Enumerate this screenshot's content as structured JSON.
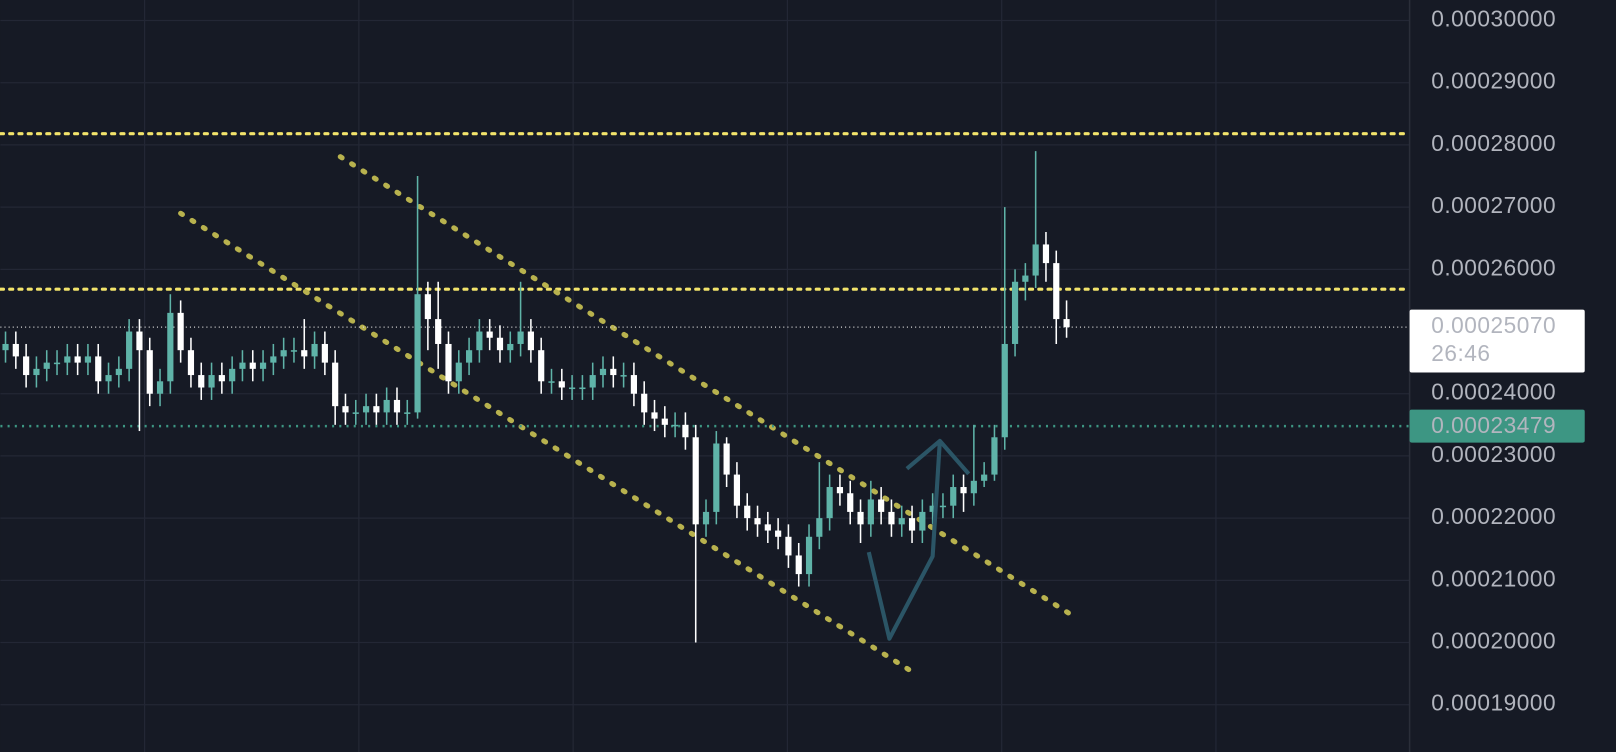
{
  "chart_data": {
    "type": "candlestick",
    "up_color": "#5fb3a8",
    "down_color": "#ffffff",
    "ylim": [
      0.0001824,
      0.0003033
    ],
    "xlim": [
      -0.5,
      136.3
    ],
    "grid": true,
    "yticks": [
      {
        "value": 0.0003,
        "label": "0.00030000"
      },
      {
        "value": 0.00029,
        "label": "0.00029000"
      },
      {
        "value": 0.00028,
        "label": "0.00028000"
      },
      {
        "value": 0.00027,
        "label": "0.00027000"
      },
      {
        "value": 0.00026,
        "label": "0.00026000"
      },
      {
        "value": 0.00024,
        "label": "0.00024000"
      },
      {
        "value": 0.00023,
        "label": "0.00023000"
      },
      {
        "value": 0.00022,
        "label": "0.00022000"
      },
      {
        "value": 0.00021,
        "label": "0.00021000"
      },
      {
        "value": 0.0002,
        "label": "0.00020000"
      },
      {
        "value": 0.00019,
        "label": "0.00019000"
      }
    ],
    "open": [
      0.000247,
      0.000248,
      0.000246,
      0.000243,
      0.000244,
      0.000245,
      0.000245,
      0.000246,
      0.000245,
      0.000246,
      0.000242,
      0.000243,
      0.000244,
      0.00025,
      0.000247,
      0.00024,
      0.000242,
      0.000253,
      0.000247,
      0.000243,
      0.000241,
      0.000243,
      0.000242,
      0.000244,
      0.000245,
      0.000244,
      0.000245,
      0.000246,
      0.000247,
      0.000247,
      0.000246,
      0.000248,
      0.000245,
      0.000238,
      0.000237,
      0.000237,
      0.000238,
      0.000237,
      0.000239,
      0.000237,
      0.000237,
      0.000256,
      0.000252,
      0.000248,
      0.000242,
      0.000245,
      0.000247,
      0.00025,
      0.000249,
      0.000247,
      0.000248,
      0.00025,
      0.000247,
      0.000242,
      0.000242,
      0.000241,
      0.000241,
      0.000241,
      0.000243,
      0.000244,
      0.000243,
      0.000243,
      0.00024,
      0.000237,
      0.000236,
      0.000235,
      0.000235,
      0.000233,
      0.000219,
      0.000221,
      0.000232,
      0.000227,
      0.000222,
      0.00022,
      0.000219,
      0.000218,
      0.000217,
      0.000214,
      0.000211,
      0.000217,
      0.00022,
      0.000225,
      0.000224,
      0.000221,
      0.000219,
      0.000223,
      0.000221,
      0.000219,
      0.00022,
      0.000218,
      0.000221,
      0.000222,
      0.000222,
      0.000225,
      0.000224,
      0.000226,
      0.000227,
      0.000233,
      0.000248,
      0.000258,
      0.000259,
      0.000264,
      0.000261,
      0.000252
    ],
    "high": [
      0.00025,
      0.00025,
      0.000248,
      0.000246,
      0.000247,
      0.000247,
      0.000248,
      0.000248,
      0.000248,
      0.000248,
      0.000245,
      0.000246,
      0.000252,
      0.000252,
      0.000249,
      0.000244,
      0.000256,
      0.000255,
      0.000249,
      0.000245,
      0.000245,
      0.000245,
      0.000246,
      0.000247,
      0.000247,
      0.000247,
      0.000248,
      0.000249,
      0.000249,
      0.000252,
      0.00025,
      0.00025,
      0.000247,
      0.00024,
      0.000239,
      0.00024,
      0.00024,
      0.000241,
      0.000241,
      0.000239,
      0.000275,
      0.000258,
      0.000258,
      0.00025,
      0.000247,
      0.000249,
      0.000252,
      0.000252,
      0.000251,
      0.00025,
      0.000258,
      0.000252,
      0.000249,
      0.000244,
      0.000244,
      0.000243,
      0.000243,
      0.000245,
      0.000246,
      0.000246,
      0.000245,
      0.000245,
      0.000242,
      0.000239,
      0.000238,
      0.000237,
      0.000237,
      0.000235,
      0.000223,
      0.000234,
      0.000233,
      0.000229,
      0.000224,
      0.000222,
      0.000221,
      0.00022,
      0.000219,
      0.000216,
      0.000219,
      0.000229,
      0.000227,
      0.000227,
      0.000226,
      0.000223,
      0.000226,
      0.000225,
      0.000223,
      0.000222,
      0.000222,
      0.000223,
      0.000224,
      0.000224,
      0.000227,
      0.000227,
      0.000235,
      0.000229,
      0.000235,
      0.00027,
      0.00026,
      0.000261,
      0.000279,
      0.000266,
      0.000263,
      0.000255
    ],
    "low": [
      0.000245,
      0.000244,
      0.000241,
      0.000241,
      0.000242,
      0.000243,
      0.000243,
      0.000243,
      0.000243,
      0.00024,
      0.00024,
      0.000241,
      0.000242,
      0.000234,
      0.000238,
      0.000238,
      0.00024,
      0.000245,
      0.000241,
      0.000239,
      0.000239,
      0.00024,
      0.00024,
      0.000242,
      0.000242,
      0.000242,
      0.000243,
      0.000244,
      0.000245,
      0.000244,
      0.000244,
      0.000243,
      0.000235,
      0.000235,
      0.000235,
      0.000235,
      0.000235,
      0.000235,
      0.000235,
      0.000235,
      0.000236,
      0.000247,
      0.000244,
      0.00024,
      0.00024,
      0.000243,
      0.000245,
      0.000247,
      0.000245,
      0.000245,
      0.000246,
      0.000245,
      0.00024,
      0.00024,
      0.000239,
      0.000239,
      0.000239,
      0.000239,
      0.000241,
      0.000241,
      0.000241,
      0.000238,
      0.000235,
      0.000234,
      0.000233,
      0.000233,
      0.000231,
      0.0002,
      0.000217,
      0.000219,
      0.000225,
      0.00022,
      0.000218,
      0.000217,
      0.000216,
      0.000215,
      0.000212,
      0.000209,
      0.000209,
      0.000215,
      0.000218,
      0.000222,
      0.000219,
      0.000216,
      0.000217,
      0.000219,
      0.000217,
      0.000217,
      0.000216,
      0.000216,
      0.000219,
      0.00022,
      0.00022,
      0.000221,
      0.000222,
      0.000225,
      0.000226,
      0.000231,
      0.000246,
      0.000255,
      0.000257,
      0.000258,
      0.000248,
      0.000249
    ],
    "close": [
      0.000248,
      0.000246,
      0.000243,
      0.000244,
      0.000245,
      0.000245,
      0.000246,
      0.000245,
      0.000246,
      0.000242,
      0.000243,
      0.000244,
      0.00025,
      0.000247,
      0.00024,
      0.000242,
      0.000253,
      0.000247,
      0.000243,
      0.000241,
      0.000243,
      0.000242,
      0.000244,
      0.000245,
      0.000244,
      0.000245,
      0.000246,
      0.000247,
      0.000247,
      0.000246,
      0.000248,
      0.000245,
      0.000238,
      0.000237,
      0.000237,
      0.000238,
      0.000237,
      0.000239,
      0.000237,
      0.000237,
      0.000256,
      0.000252,
      0.000248,
      0.000242,
      0.000245,
      0.000247,
      0.00025,
      0.000249,
      0.000247,
      0.000248,
      0.00025,
      0.000247,
      0.000242,
      0.000242,
      0.000241,
      0.000241,
      0.000241,
      0.000243,
      0.000244,
      0.000243,
      0.000243,
      0.00024,
      0.000237,
      0.000236,
      0.000235,
      0.000235,
      0.000233,
      0.000219,
      0.000221,
      0.000232,
      0.000227,
      0.000222,
      0.00022,
      0.000219,
      0.000218,
      0.000217,
      0.000214,
      0.000211,
      0.000217,
      0.00022,
      0.000225,
      0.000224,
      0.000221,
      0.000219,
      0.000223,
      0.000221,
      0.000219,
      0.00022,
      0.000218,
      0.000221,
      0.000222,
      0.000222,
      0.000225,
      0.000224,
      0.000226,
      0.000227,
      0.000233,
      0.000248,
      0.000258,
      0.000259,
      0.000264,
      0.000261,
      0.000252,
      0.0002507
    ],
    "horizontal_lines": [
      {
        "value": 0.0002818,
        "color": "#f2e36b"
      },
      {
        "value": 0.0002568,
        "color": "#f2e36b"
      }
    ],
    "trend_lines": [
      {
        "x": [
          17,
          88.5
        ],
        "y": [
          0.000269,
          0.0001948
        ],
        "color": "#b8b24e"
      },
      {
        "x": [
          32.5,
          104
        ],
        "y": [
          0.0002781,
          0.0002039
        ],
        "color": "#b8b24e"
      }
    ],
    "last_price": {
      "value": 0.0002507,
      "label": "0.00025070"
    },
    "countdown": "26:46",
    "marked_price": {
      "value": 0.00023479,
      "label": "0.00023479",
      "color": "#3d9683"
    }
  }
}
